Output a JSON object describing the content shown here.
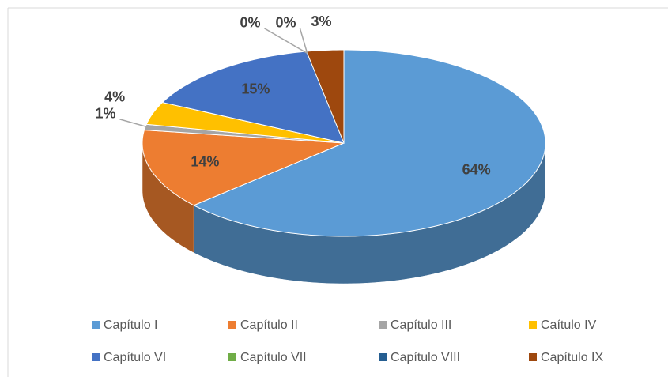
{
  "chart_data": {
    "type": "pie3d",
    "categories": [
      "Capítulo I",
      "Capítulo II",
      "Capítulo III",
      "Caítulo IV",
      "Capítulo VI",
      "Capítulo VII",
      "Capítulo VIII",
      "Capítulo IX"
    ],
    "values": [
      64,
      14,
      1,
      4,
      15,
      0,
      0,
      3
    ],
    "value_labels": [
      "64%",
      "14%",
      "1%",
      "4%",
      "15%",
      "0%",
      "0%",
      "3%"
    ],
    "colors": [
      "#5b9bd5",
      "#ed7d31",
      "#a5a5a5",
      "#ffc000",
      "#4472c4",
      "#70ad47",
      "#255e91",
      "#9e480e"
    ],
    "legend": "bottom"
  }
}
